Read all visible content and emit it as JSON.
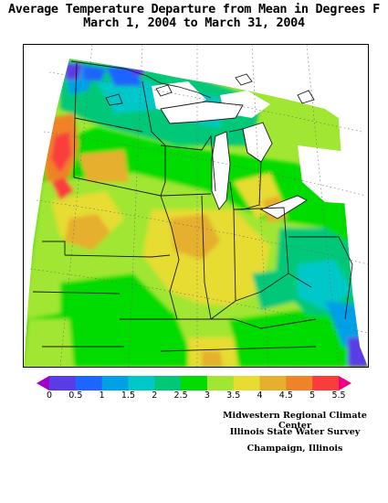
{
  "title": {
    "line1": "Average Temperature Departure from Mean in Degrees F",
    "line2": "March 1, 2004 to March 31, 2004"
  },
  "legend": {
    "ticks": [
      "0",
      "0.5",
      "1",
      "1.5",
      "2",
      "2.5",
      "3",
      "3.5",
      "4",
      "4.5",
      "5",
      "5.5"
    ],
    "colors": [
      "#a000c8",
      "#5a3ce6",
      "#1e64ff",
      "#00a0e6",
      "#00c8c8",
      "#00c878",
      "#00dc00",
      "#a0e632",
      "#e6dc32",
      "#e6af2d",
      "#f08228",
      "#fa3c3c",
      "#f00082"
    ]
  },
  "credits": [
    "Midwestern Regional Climate Center",
    "Illinois State Water Survey",
    "Champaign, Illinois"
  ],
  "map": {
    "region": "Midwest United States",
    "period": "March 1, 2004 to March 31, 2004",
    "variable": "Average Temperature Departure from Mean (°F)"
  }
}
